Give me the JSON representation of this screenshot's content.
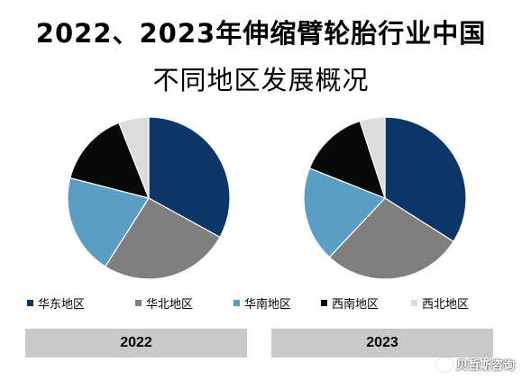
{
  "title_line_1": "2022、2023年伸缩臂轮胎行业中国",
  "title_line_2": "不同地区发展概况",
  "colors": {
    "华东地区": "#0b3768",
    "华北地区": "#7f7f7f",
    "华南地区": "#5a9ec3",
    "西南地区": "#080808",
    "西北地区": "#dcdcdc"
  },
  "legend": [
    "华东地区",
    "华北地区",
    "华南地区",
    "西南地区",
    "西北地区"
  ],
  "watermark": "贝哲斯咨询",
  "chart_data": [
    {
      "type": "pie",
      "title": "2022",
      "categories": [
        "华东地区",
        "华北地区",
        "华南地区",
        "西南地区",
        "西北地区"
      ],
      "values": [
        33,
        26,
        20,
        15,
        6
      ]
    },
    {
      "type": "pie",
      "title": "2023",
      "categories": [
        "华东地区",
        "华北地区",
        "华南地区",
        "西南地区",
        "西北地区"
      ],
      "values": [
        34,
        28,
        19,
        14,
        5
      ]
    }
  ]
}
